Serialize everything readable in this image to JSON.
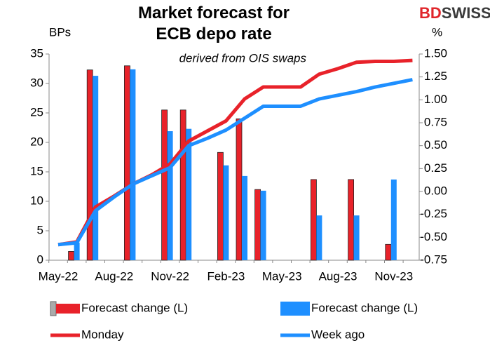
{
  "brand": {
    "part1": "BD",
    "part2": "SWISS"
  },
  "chart_data": {
    "type": "bar",
    "title": "Market forecast for ECB depo rate",
    "subtitle": "derived from OIS swaps",
    "y_label": "BPs",
    "y2_label": "%",
    "categories": [
      "May-22",
      null,
      null,
      "Aug-22",
      null,
      null,
      "Nov-22",
      null,
      null,
      "Feb-23",
      null,
      null,
      "May-23",
      null,
      null,
      "Aug-23",
      null,
      null,
      "Nov-23",
      null
    ],
    "ylim": [
      0,
      35
    ],
    "yticks": [
      0,
      5,
      10,
      15,
      20,
      25,
      30,
      35
    ],
    "y2lim": [
      -0.75,
      1.5
    ],
    "y2ticks": [
      -0.75,
      {
        "value": -0.5,
        "label": "-0.50"
      },
      -0.25,
      {
        "value": 0,
        "label": "0.00"
      },
      0.25,
      {
        "value": 0.5,
        "label": "0.50"
      },
      0.75,
      {
        "value": 1,
        "label": "1.00"
      },
      1.25,
      {
        "value": 1.5,
        "label": "1.50"
      }
    ],
    "series": [
      {
        "name": "Forecast change (L)",
        "type": "bar",
        "color": "#e8222a",
        "values": [
          null,
          1.5,
          32.3,
          null,
          33,
          null,
          25.5,
          25.5,
          null,
          18.3,
          24,
          12,
          null,
          null,
          13.7,
          null,
          13.7,
          null,
          2.7,
          null
        ]
      },
      {
        "name": "Forecast change (L)",
        "type": "bar",
        "color": "#1e8fff",
        "values": [
          null,
          3,
          31.3,
          null,
          32.4,
          null,
          21.9,
          22.3,
          null,
          16.1,
          14.3,
          11.8,
          null,
          null,
          7.6,
          null,
          7.6,
          null,
          13.7,
          null
        ]
      },
      {
        "name": "Monday",
        "type": "line",
        "axis": "y2",
        "color": "#e8222a",
        "values": [
          -0.58,
          -0.55,
          -0.17,
          -0.05,
          0.08,
          0.18,
          0.3,
          0.55,
          0.66,
          0.77,
          1.01,
          1.14,
          1.14,
          1.14,
          1.28,
          1.34,
          1.41,
          1.42,
          1.42,
          1.43
        ]
      },
      {
        "name": "Week ago",
        "type": "line",
        "axis": "y2",
        "color": "#1e8fff",
        "values": [
          -0.58,
          -0.56,
          -0.21,
          -0.06,
          0.08,
          0.17,
          0.26,
          0.5,
          0.58,
          0.67,
          0.8,
          0.93,
          0.93,
          0.93,
          1.01,
          1.05,
          1.09,
          1.14,
          1.18,
          1.22
        ]
      }
    ]
  }
}
